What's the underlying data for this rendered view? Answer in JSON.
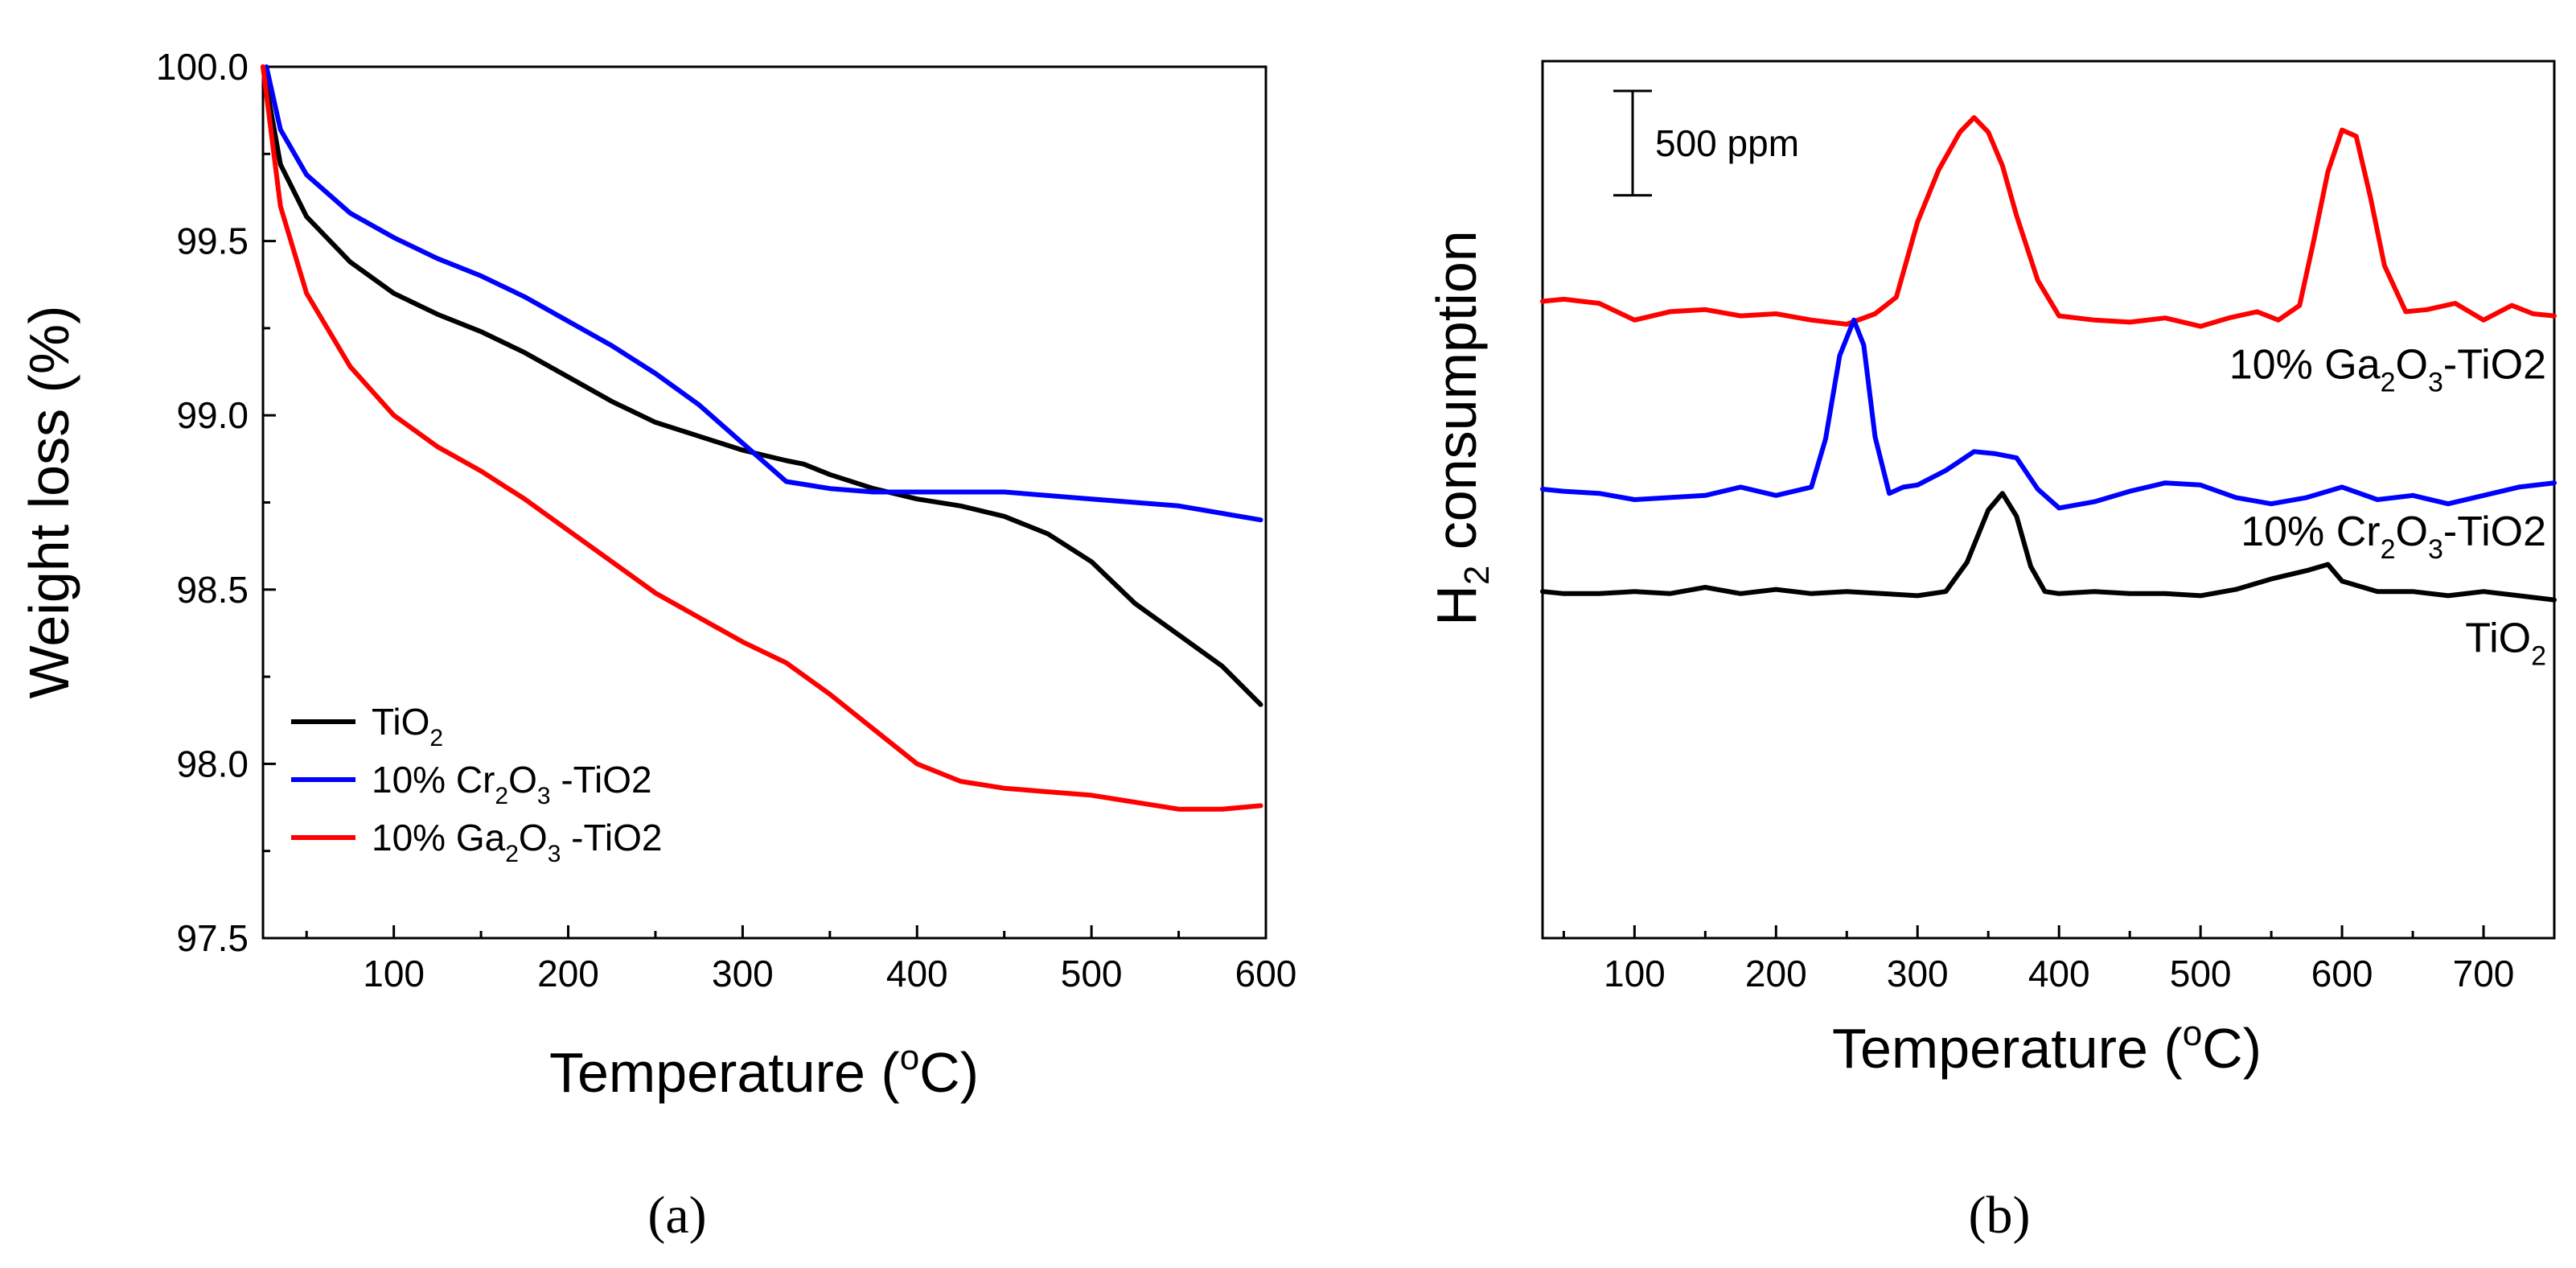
{
  "chart_data": [
    {
      "panel": "a",
      "type": "line",
      "xlabel": "Temperature (oC)",
      "ylabel": "Weight loss (%)",
      "xlim": [
        25,
        600
      ],
      "ylim": [
        97.5,
        100.0
      ],
      "xticks": [
        100,
        200,
        300,
        400,
        500,
        600
      ],
      "yticks": [
        97.5,
        98.0,
        98.5,
        99.0,
        99.5,
        100.0
      ],
      "legend_position": "bottom-left",
      "series": [
        {
          "name": "TiO2",
          "legend": {
            "pre": "TiO",
            "sub1": "2",
            "mid": "",
            "sub2": "",
            "post": ""
          },
          "color": "#000000",
          "x": [
            25,
            35,
            50,
            75,
            100,
            125,
            150,
            175,
            200,
            225,
            250,
            275,
            300,
            325,
            335,
            350,
            375,
            400,
            425,
            450,
            475,
            500,
            525,
            550,
            575,
            597
          ],
          "y": [
            100.0,
            99.72,
            99.57,
            99.44,
            99.35,
            99.29,
            99.24,
            99.18,
            99.11,
            99.04,
            98.98,
            98.94,
            98.9,
            98.87,
            98.86,
            98.83,
            98.79,
            98.76,
            98.74,
            98.71,
            98.66,
            98.58,
            98.46,
            98.37,
            98.28,
            98.17
          ]
        },
        {
          "name": "10% Cr2O3 -TiO2",
          "legend": {
            "pre": "10% Cr",
            "sub1": "2",
            "mid": "O",
            "sub2": "3",
            "post": " -TiO2"
          },
          "color": "#0000ff",
          "x": [
            27,
            35,
            50,
            75,
            100,
            125,
            150,
            175,
            200,
            225,
            250,
            275,
            300,
            325,
            350,
            375,
            400,
            450,
            500,
            550,
            597
          ],
          "y": [
            100.0,
            99.82,
            99.69,
            99.58,
            99.51,
            99.45,
            99.4,
            99.34,
            99.27,
            99.2,
            99.12,
            99.03,
            98.92,
            98.81,
            98.79,
            98.78,
            98.78,
            98.78,
            98.76,
            98.74,
            98.7
          ]
        },
        {
          "name": "10% Ga2O3 -TiO2",
          "legend": {
            "pre": "10% Ga",
            "sub1": "2",
            "mid": "O",
            "sub2": "3",
            "post": " -TiO2"
          },
          "color": "#ff0000",
          "x": [
            25,
            35,
            50,
            75,
            100,
            125,
            150,
            175,
            200,
            225,
            250,
            275,
            300,
            325,
            350,
            375,
            400,
            425,
            450,
            475,
            500,
            525,
            550,
            575,
            597
          ],
          "y": [
            100.0,
            99.6,
            99.35,
            99.14,
            99.0,
            98.91,
            98.84,
            98.76,
            98.67,
            98.58,
            98.49,
            98.42,
            98.35,
            98.29,
            98.2,
            98.1,
            98.0,
            97.95,
            97.93,
            97.92,
            97.91,
            97.89,
            97.87,
            97.87,
            97.88
          ]
        }
      ]
    },
    {
      "panel": "b",
      "type": "line",
      "xlabel": "Temperature (oC)",
      "ylabel": "H2 consumption",
      "xlim": [
        35,
        750
      ],
      "xticks": [
        100,
        200,
        300,
        400,
        500,
        600,
        700
      ],
      "ylim": [
        0,
        4200
      ],
      "y_units": "ppm (offset curves, no y tick labels)",
      "scale_bar": "500 ppm",
      "scale_bar_value": 500,
      "series": [
        {
          "name": "10% Ga2O3-TiO2",
          "label": {
            "pre": "10% Ga",
            "sub1": "2",
            "mid": "O",
            "sub2": "3",
            "post": "-TiO2"
          },
          "color": "#ff0000",
          "x": [
            35,
            50,
            75,
            100,
            125,
            150,
            175,
            200,
            225,
            250,
            270,
            285,
            300,
            315,
            330,
            340,
            350,
            360,
            370,
            385,
            400,
            425,
            450,
            475,
            500,
            520,
            540,
            555,
            570,
            580,
            590,
            600,
            610,
            620,
            630,
            645,
            660,
            680,
            700,
            720,
            735,
            750
          ],
          "y": [
            3050,
            3060,
            3040,
            2960,
            3000,
            3010,
            2980,
            2990,
            2960,
            2940,
            2990,
            3070,
            3430,
            3680,
            3860,
            3930,
            3860,
            3700,
            3460,
            3150,
            2980,
            2960,
            2950,
            2970,
            2930,
            2970,
            3000,
            2960,
            3030,
            3340,
            3670,
            3870,
            3840,
            3550,
            3220,
            3000,
            3010,
            3040,
            2960,
            3030,
            2990,
            2980
          ]
        },
        {
          "name": "10% Cr2O3-TiO2",
          "label": {
            "pre": "10% Cr",
            "sub1": "2",
            "mid": "O",
            "sub2": "3",
            "post": "-TiO2"
          },
          "color": "#0000ff",
          "x": [
            35,
            50,
            75,
            100,
            125,
            150,
            175,
            200,
            225,
            235,
            245,
            255,
            262,
            270,
            280,
            290,
            300,
            320,
            340,
            355,
            370,
            385,
            400,
            425,
            450,
            475,
            500,
            525,
            550,
            575,
            600,
            625,
            650,
            675,
            700,
            725,
            750
          ],
          "y": [
            2150,
            2140,
            2130,
            2100,
            2110,
            2120,
            2160,
            2120,
            2160,
            2390,
            2790,
            2960,
            2840,
            2400,
            2130,
            2160,
            2170,
            2240,
            2330,
            2320,
            2300,
            2150,
            2060,
            2090,
            2140,
            2180,
            2170,
            2110,
            2080,
            2110,
            2160,
            2100,
            2120,
            2080,
            2120,
            2160,
            2180
          ]
        },
        {
          "name": "TiO2",
          "label": {
            "pre": "TiO",
            "sub1": "2",
            "mid": "",
            "sub2": "",
            "post": ""
          },
          "color": "#000000",
          "x": [
            35,
            50,
            75,
            100,
            125,
            150,
            175,
            200,
            225,
            250,
            275,
            300,
            320,
            335,
            350,
            360,
            370,
            380,
            390,
            400,
            425,
            450,
            475,
            500,
            525,
            550,
            575,
            590,
            600,
            625,
            650,
            675,
            700,
            725,
            750
          ],
          "y": [
            1660,
            1650,
            1650,
            1660,
            1650,
            1680,
            1650,
            1670,
            1650,
            1660,
            1650,
            1640,
            1660,
            1800,
            2050,
            2130,
            2020,
            1780,
            1660,
            1650,
            1660,
            1650,
            1650,
            1640,
            1670,
            1720,
            1760,
            1790,
            1710,
            1660,
            1660,
            1640,
            1660,
            1640,
            1620
          ]
        }
      ]
    }
  ],
  "panels": {
    "a": {
      "caption": "(a)",
      "ylabel": "Weight loss (%)",
      "xlabel_pre": "Temperature (",
      "xlabel_sup": "o",
      "xlabel_post": "C)"
    },
    "b": {
      "caption": "(b)",
      "ylabel_pre": "H",
      "ylabel_sub": "2",
      "ylabel_post": " consumption",
      "xlabel_pre": "Temperature (",
      "xlabel_sup": "o",
      "xlabel_post": "C)",
      "scale_bar": "500 ppm"
    }
  }
}
